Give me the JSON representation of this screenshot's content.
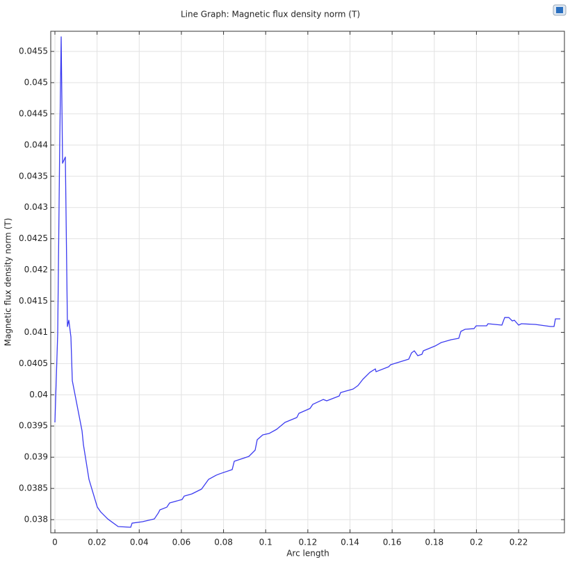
{
  "chart_data": {
    "type": "line",
    "title": "Line Graph: Magnetic flux density norm (T)",
    "x_label": "Arc length",
    "y_label": "Magnetic flux density norm (T)",
    "xlim": [
      -0.00198,
      0.24175
    ],
    "ylim": [
      0.037789,
      0.045823
    ],
    "xticks": [
      0,
      0.02,
      0.04,
      0.06,
      0.08,
      0.1,
      0.12,
      0.14,
      0.16,
      0.18,
      0.2,
      0.22
    ],
    "yticks": [
      0.038,
      0.0385,
      0.039,
      0.0395,
      0.04,
      0.0405,
      0.041,
      0.0415,
      0.042,
      0.0425,
      0.043,
      0.0435,
      0.044,
      0.0445,
      0.045,
      0.0455
    ],
    "grid": true,
    "series": [
      {
        "color": "#3a3af0",
        "x": [
          0,
          0.00132,
          0.00231,
          0.00297,
          0.00363,
          0.00495,
          0.00594,
          0.0066,
          0.00759,
          0.00825,
          0.01286,
          0.01352,
          0.01616,
          0.02012,
          0.02177,
          0.02507,
          0.03001,
          0.03595,
          0.03661,
          0.04156,
          0.04716,
          0.04914,
          0.0498,
          0.0531,
          0.05442,
          0.06036,
          0.06135,
          0.06497,
          0.06959,
          0.07289,
          0.07652,
          0.07817,
          0.0841,
          0.08509,
          0.09202,
          0.09499,
          0.09598,
          0.09862,
          0.10158,
          0.10521,
          0.10917,
          0.11478,
          0.11577,
          0.12104,
          0.12236,
          0.12731,
          0.12896,
          0.13489,
          0.13555,
          0.14149,
          0.1438,
          0.14611,
          0.14941,
          0.15205,
          0.15237,
          0.15831,
          0.1593,
          0.16359,
          0.16788,
          0.1692,
          0.17052,
          0.17216,
          0.17414,
          0.1748,
          0.18041,
          0.18338,
          0.188,
          0.19163,
          0.19261,
          0.19459,
          0.19888,
          0.19987,
          0.20482,
          0.20548,
          0.21207,
          0.2134,
          0.21537,
          0.21702,
          0.21801,
          0.21999,
          0.22131,
          0.22791,
          0.23516,
          0.23681,
          0.23747,
          0.23978
        ],
        "values": [
          0.039558,
          0.040982,
          0.044098,
          0.045734,
          0.043709,
          0.043809,
          0.041094,
          0.041194,
          0.040927,
          0.040226,
          0.039424,
          0.039202,
          0.038645,
          0.0382,
          0.038122,
          0.038011,
          0.037889,
          0.037878,
          0.037944,
          0.037967,
          0.038011,
          0.038111,
          0.038156,
          0.0382,
          0.038267,
          0.038323,
          0.038378,
          0.038412,
          0.03849,
          0.038645,
          0.038712,
          0.038734,
          0.038801,
          0.038935,
          0.039013,
          0.039113,
          0.03928,
          0.039358,
          0.03938,
          0.039447,
          0.039558,
          0.039636,
          0.039703,
          0.039781,
          0.039847,
          0.039925,
          0.039903,
          0.039981,
          0.040036,
          0.040092,
          0.040148,
          0.040248,
          0.040359,
          0.040415,
          0.04037,
          0.040448,
          0.040482,
          0.040526,
          0.040571,
          0.040671,
          0.040704,
          0.040626,
          0.040649,
          0.040704,
          0.040782,
          0.040838,
          0.040882,
          0.040905,
          0.041016,
          0.041049,
          0.04106,
          0.041105,
          0.041105,
          0.041138,
          0.041116,
          0.041238,
          0.041238,
          0.041183,
          0.041194,
          0.041116,
          0.041138,
          0.041127,
          0.041094,
          0.041094,
          0.041216,
          0.041216
        ]
      }
    ]
  }
}
